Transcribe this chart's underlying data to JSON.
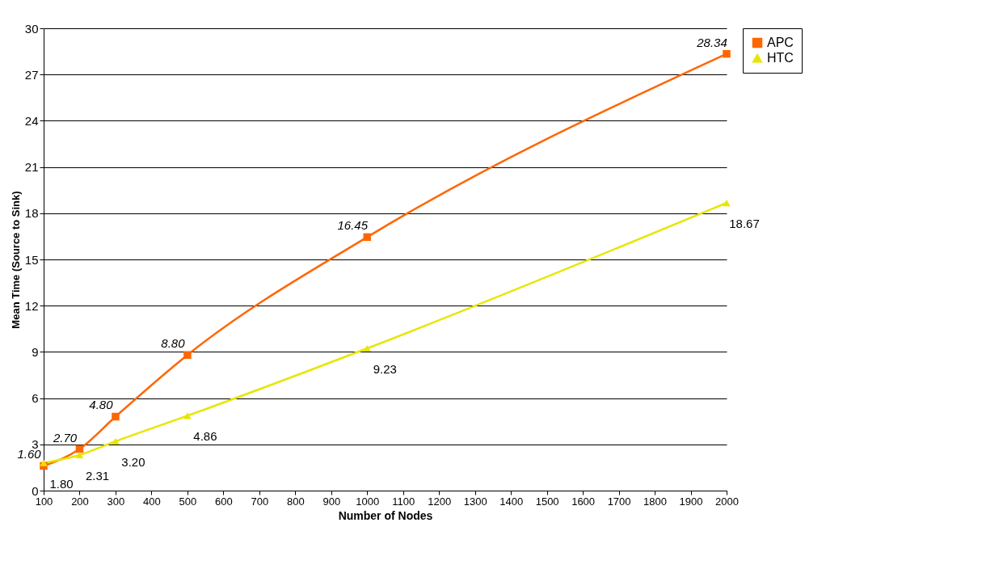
{
  "chart_data": {
    "type": "line",
    "xlabel": "Number of Nodes",
    "ylabel": "Mean Time (Source to Sink)",
    "x": [
      100,
      200,
      300,
      500,
      1000,
      2000
    ],
    "series": [
      {
        "name": "APC",
        "color": "#ff6600",
        "marker": "square",
        "values": [
          1.6,
          2.7,
          4.8,
          8.8,
          16.45,
          28.34
        ],
        "value_labels": [
          "1.60",
          "2.70",
          "4.80",
          "8.80",
          "16.45",
          "28.34"
        ]
      },
      {
        "name": "HTC",
        "color": "#e6e600",
        "marker": "triangle",
        "values": [
          1.8,
          2.31,
          3.2,
          4.86,
          9.23,
          18.67
        ],
        "value_labels": [
          "1.80",
          "2.31",
          "3.20",
          "4.86",
          "9.23",
          "18.67"
        ]
      }
    ],
    "xlim": [
      100,
      2000
    ],
    "xticks": [
      100,
      200,
      300,
      400,
      500,
      600,
      700,
      800,
      900,
      1000,
      1100,
      1200,
      1300,
      1400,
      1500,
      1600,
      1700,
      1800,
      1900,
      2000
    ],
    "ylim": [
      0,
      30
    ],
    "yticks": [
      0,
      3,
      6,
      9,
      12,
      15,
      18,
      21,
      24,
      27,
      30
    ],
    "grid": "y",
    "legend": "right",
    "line_style": "solid"
  }
}
